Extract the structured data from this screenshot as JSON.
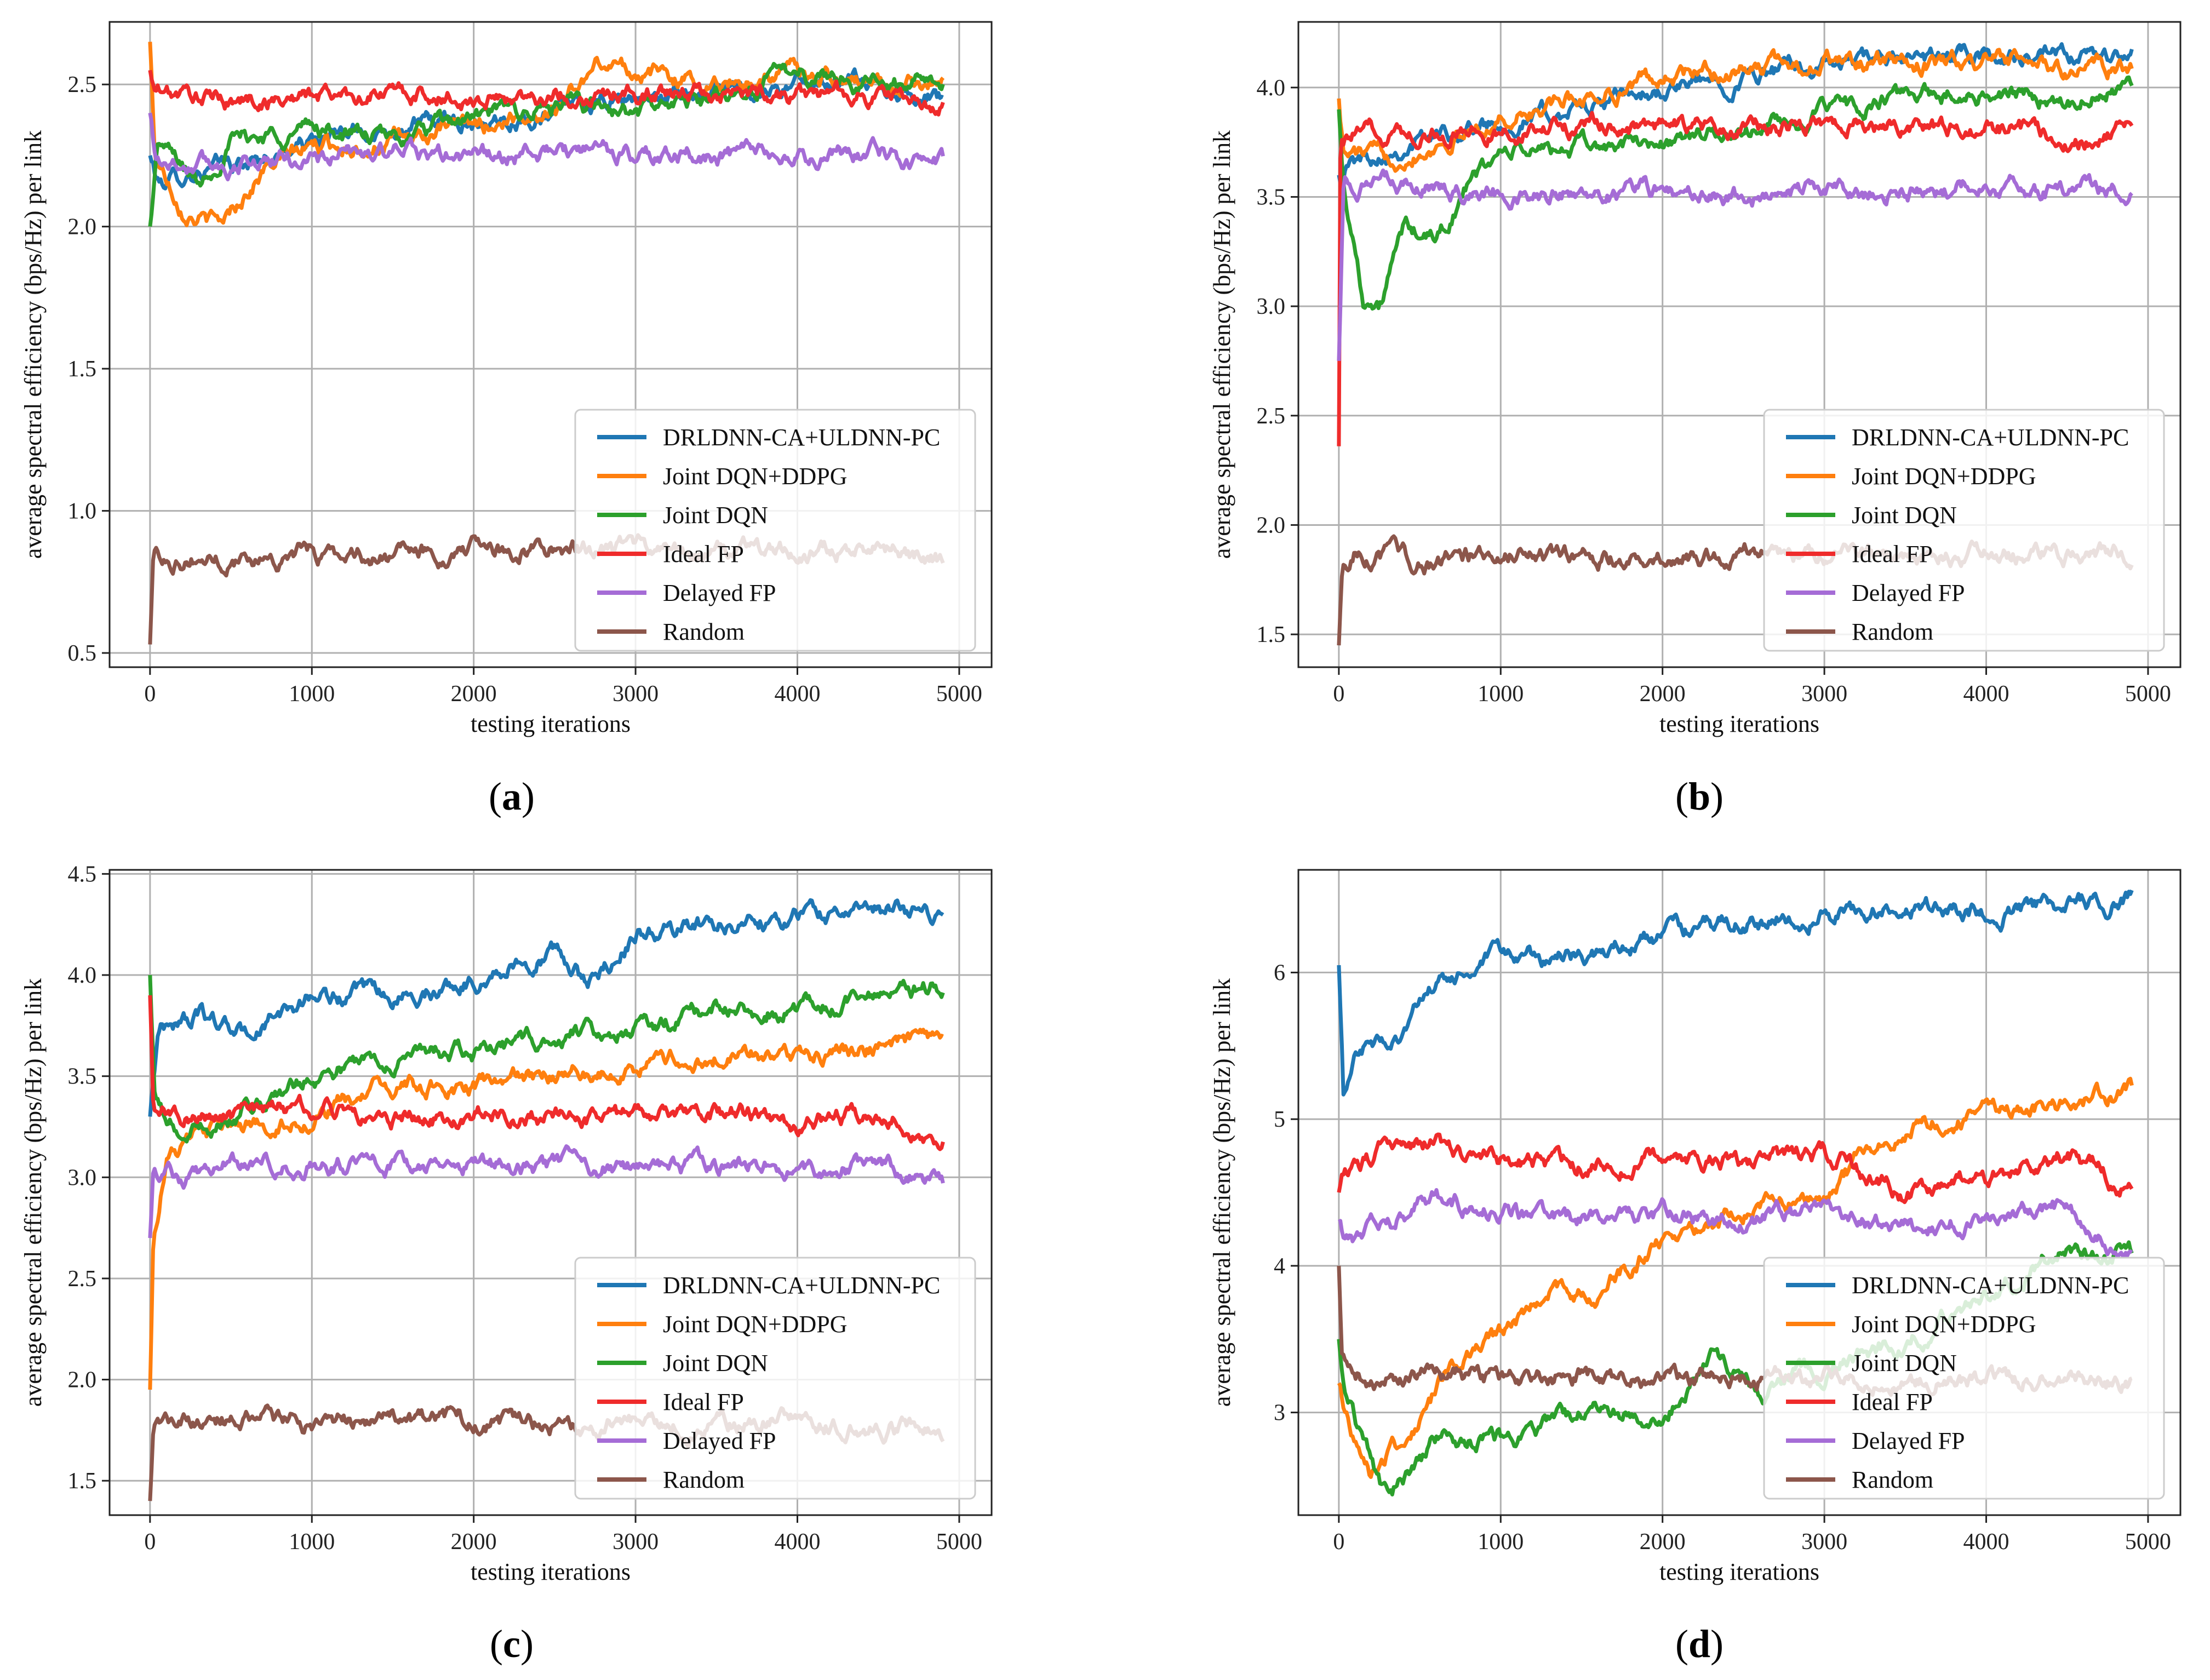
{
  "figure": {
    "x_label": "testing iterations",
    "y_label": "average spectral efficiency (bps/Hz) per link",
    "legend": [
      {
        "name": "DRLDNN-CA+ULDNN-PC",
        "color": "#1f77b4"
      },
      {
        "name": "Joint DQN+DDPG",
        "color": "#ff7f0e"
      },
      {
        "name": "Joint DQN",
        "color": "#2ca02c"
      },
      {
        "name": "Ideal FP",
        "color": "#ef2b2b"
      },
      {
        "name": "Delayed FP",
        "color": "#a56cd6"
      },
      {
        "name": "Random",
        "color": "#8c564b"
      }
    ]
  },
  "chart_data": [
    {
      "id": "a",
      "label": "(a)",
      "type": "line",
      "xlabel": "testing iterations",
      "ylabel": "average spectral efficiency (bps/Hz) per link",
      "xlim": [
        -250,
        5200
      ],
      "ylim": [
        0.45,
        2.72
      ],
      "xticks": [
        0,
        1000,
        2000,
        3000,
        4000,
        5000
      ],
      "yticks": [
        0.5,
        1.0,
        1.5,
        2.0,
        2.5
      ],
      "ytick_labels": [
        "0.5",
        "1.0",
        "1.5",
        "2.0",
        "2.5"
      ],
      "grid": true,
      "legend_position": "lower-right",
      "series": [
        {
          "name": "DRLDNN-CA+ULDNN-PC",
          "color": "#1f77b4",
          "x": [
            0,
            50,
            300,
            600,
            1000,
            1500,
            2000,
            2500,
            3000,
            3500,
            4000,
            4500,
            4900
          ],
          "y": [
            2.25,
            2.15,
            2.2,
            2.22,
            2.3,
            2.35,
            2.38,
            2.4,
            2.45,
            2.47,
            2.5,
            2.5,
            2.45
          ]
        },
        {
          "name": "Joint DQN+DDPG",
          "color": "#ff7f0e",
          "x": [
            0,
            30,
            200,
            420,
            700,
            1000,
            1500,
            2000,
            2500,
            2800,
            3000,
            3500,
            4000,
            4500,
            4900
          ],
          "y": [
            2.65,
            2.25,
            2.08,
            2.0,
            2.2,
            2.28,
            2.3,
            2.35,
            2.42,
            2.58,
            2.55,
            2.5,
            2.55,
            2.5,
            2.52
          ]
        },
        {
          "name": "Joint DQN",
          "color": "#2ca02c",
          "x": [
            0,
            50,
            300,
            500,
            1000,
            1500,
            2000,
            2500,
            3000,
            3500,
            4000,
            4500,
            4900
          ],
          "y": [
            2.0,
            2.3,
            2.15,
            2.3,
            2.35,
            2.3,
            2.38,
            2.42,
            2.4,
            2.45,
            2.55,
            2.5,
            2.52
          ]
        },
        {
          "name": "Ideal FP",
          "color": "#ef2b2b",
          "x": [
            0,
            20,
            100,
            500,
            1000,
            1500,
            2000,
            2500,
            3000,
            3500,
            4000,
            4500,
            4900
          ],
          "y": [
            2.55,
            2.48,
            2.47,
            2.44,
            2.46,
            2.47,
            2.45,
            2.46,
            2.47,
            2.46,
            2.47,
            2.46,
            2.42
          ]
        },
        {
          "name": "Delayed FP",
          "color": "#a56cd6",
          "x": [
            0,
            30,
            200,
            500,
            1000,
            1500,
            2000,
            2500,
            3000,
            3500,
            4000,
            4500,
            4900
          ],
          "y": [
            2.4,
            2.25,
            2.22,
            2.22,
            2.24,
            2.26,
            2.24,
            2.26,
            2.25,
            2.25,
            2.24,
            2.25,
            2.22
          ]
        },
        {
          "name": "Random",
          "color": "#8c564b",
          "x": [
            0,
            20,
            100,
            500,
            1000,
            1500,
            2000,
            2500,
            3000,
            3500,
            4000,
            4500,
            4900
          ],
          "y": [
            0.53,
            0.85,
            0.84,
            0.83,
            0.85,
            0.84,
            0.86,
            0.87,
            0.86,
            0.85,
            0.86,
            0.86,
            0.82
          ]
        }
      ]
    },
    {
      "id": "b",
      "label": "(b)",
      "type": "line",
      "xlabel": "testing iterations",
      "ylabel": "average spectral efficiency (bps/Hz) per link",
      "xlim": [
        -250,
        5200
      ],
      "ylim": [
        1.35,
        4.3
      ],
      "xticks": [
        0,
        1000,
        2000,
        3000,
        4000,
        5000
      ],
      "yticks": [
        1.5,
        2.0,
        2.5,
        3.0,
        3.5,
        4.0
      ],
      "ytick_labels": [
        "1.5",
        "2.0",
        "2.5",
        "3.0",
        "3.5",
        "4.0"
      ],
      "grid": true,
      "legend_position": "lower-right",
      "series": [
        {
          "name": "DRLDNN-CA+ULDNN-PC",
          "color": "#1f77b4",
          "x": [
            0,
            50,
            300,
            600,
            1000,
            1500,
            2000,
            2500,
            3000,
            3500,
            4000,
            4500,
            4900
          ],
          "y": [
            3.6,
            3.65,
            3.72,
            3.78,
            3.85,
            3.9,
            3.98,
            4.05,
            4.1,
            4.12,
            4.15,
            4.12,
            4.15
          ]
        },
        {
          "name": "Joint DQN+DDPG",
          "color": "#ff7f0e",
          "x": [
            0,
            30,
            300,
            600,
            1000,
            1500,
            2000,
            2500,
            3000,
            3500,
            4000,
            4500,
            4900
          ],
          "y": [
            3.95,
            3.7,
            3.68,
            3.75,
            3.85,
            3.95,
            4.05,
            4.08,
            4.12,
            4.1,
            4.12,
            4.08,
            4.1
          ]
        },
        {
          "name": "Joint DQN",
          "color": "#2ca02c",
          "x": [
            0,
            30,
            150,
            250,
            400,
            600,
            800,
            1000,
            1500,
            2000,
            2500,
            3000,
            3500,
            4000,
            4500,
            4900
          ],
          "y": [
            3.9,
            3.55,
            3.05,
            2.98,
            3.35,
            3.3,
            3.55,
            3.7,
            3.72,
            3.75,
            3.8,
            3.88,
            3.95,
            3.98,
            3.95,
            4.0
          ]
        },
        {
          "name": "Ideal FP",
          "color": "#ef2b2b",
          "x": [
            0,
            10,
            30,
            300,
            1000,
            1500,
            2000,
            2500,
            3000,
            3500,
            4000,
            4500,
            4900
          ],
          "y": [
            2.36,
            3.8,
            3.78,
            3.8,
            3.8,
            3.82,
            3.82,
            3.8,
            3.85,
            3.83,
            3.82,
            3.78,
            3.8
          ]
        },
        {
          "name": "Delayed FP",
          "color": "#a56cd6",
          "x": [
            0,
            30,
            300,
            1000,
            1500,
            2000,
            2500,
            3000,
            3500,
            4000,
            4500,
            4900
          ],
          "y": [
            2.75,
            3.58,
            3.55,
            3.52,
            3.52,
            3.52,
            3.5,
            3.53,
            3.52,
            3.55,
            3.53,
            3.54
          ]
        },
        {
          "name": "Random",
          "color": "#8c564b",
          "x": [
            0,
            20,
            100,
            500,
            1000,
            1500,
            2000,
            2500,
            3000,
            3500,
            4000,
            4500,
            4900
          ],
          "y": [
            1.45,
            1.8,
            1.88,
            1.82,
            1.88,
            1.85,
            1.86,
            1.88,
            1.87,
            1.86,
            1.86,
            1.87,
            1.85
          ]
        }
      ]
    },
    {
      "id": "c",
      "label": "(c)",
      "type": "line",
      "xlabel": "testing iterations",
      "ylabel": "average spectral efficiency (bps/Hz) per link",
      "xlim": [
        -250,
        5200
      ],
      "ylim": [
        1.33,
        4.52
      ],
      "xticks": [
        0,
        1000,
        2000,
        3000,
        4000,
        5000
      ],
      "yticks": [
        1.5,
        2.0,
        2.5,
        3.0,
        3.5,
        4.0,
        4.5
      ],
      "ytick_labels": [
        "1.5",
        "2.0",
        "2.5",
        "3.0",
        "3.5",
        "4.0",
        "4.5"
      ],
      "grid": true,
      "legend_position": "lower-right",
      "series": [
        {
          "name": "DRLDNN-CA+ULDNN-PC",
          "color": "#1f77b4",
          "x": [
            0,
            50,
            300,
            600,
            1000,
            1500,
            2000,
            2500,
            2700,
            3000,
            3500,
            4000,
            4500,
            4900
          ],
          "y": [
            3.3,
            3.75,
            3.8,
            3.7,
            3.9,
            3.88,
            3.98,
            4.12,
            3.95,
            4.2,
            4.25,
            4.3,
            4.32,
            4.3
          ]
        },
        {
          "name": "Joint DQN+DDPG",
          "color": "#ff7f0e",
          "x": [
            0,
            20,
            100,
            300,
            600,
            1000,
            1500,
            2000,
            2500,
            3000,
            3500,
            4000,
            4500,
            4900
          ],
          "y": [
            1.95,
            2.7,
            3.1,
            3.2,
            3.25,
            3.3,
            3.45,
            3.45,
            3.5,
            3.55,
            3.6,
            3.6,
            3.65,
            3.65
          ]
        },
        {
          "name": "Joint DQN",
          "color": "#2ca02c",
          "x": [
            0,
            30,
            200,
            500,
            1000,
            1500,
            2000,
            2500,
            3000,
            3500,
            4000,
            4500,
            4900
          ],
          "y": [
            4.0,
            3.35,
            3.2,
            3.3,
            3.5,
            3.6,
            3.62,
            3.7,
            3.75,
            3.82,
            3.85,
            3.9,
            3.95
          ]
        },
        {
          "name": "Ideal FP",
          "color": "#ef2b2b",
          "x": [
            0,
            20,
            200,
            500,
            1000,
            1500,
            2000,
            2500,
            3000,
            3500,
            4000,
            4500,
            4900
          ],
          "y": [
            3.9,
            3.35,
            3.3,
            3.3,
            3.35,
            3.3,
            3.32,
            3.3,
            3.3,
            3.32,
            3.28,
            3.3,
            3.22
          ]
        },
        {
          "name": "Delayed FP",
          "color": "#a56cd6",
          "x": [
            0,
            20,
            200,
            500,
            1000,
            1500,
            2000,
            2500,
            3000,
            3500,
            4000,
            4500,
            4900
          ],
          "y": [
            2.7,
            3.05,
            3.0,
            3.05,
            3.08,
            3.05,
            3.05,
            3.05,
            3.05,
            3.05,
            3.05,
            3.05,
            2.98
          ]
        },
        {
          "name": "Random",
          "color": "#8c564b",
          "x": [
            0,
            20,
            100,
            500,
            1000,
            1500,
            2000,
            2500,
            3000,
            3500,
            4000,
            4500,
            4900
          ],
          "y": [
            1.4,
            1.72,
            1.8,
            1.8,
            1.78,
            1.8,
            1.8,
            1.78,
            1.8,
            1.78,
            1.8,
            1.78,
            1.76
          ]
        }
      ]
    },
    {
      "id": "d",
      "label": "(d)",
      "type": "line",
      "xlabel": "testing iterations",
      "ylabel": "average spectral efficiency (bps/Hz) per link",
      "xlim": [
        -250,
        5200
      ],
      "ylim": [
        2.3,
        6.7
      ],
      "xticks": [
        0,
        1000,
        2000,
        3000,
        4000,
        5000
      ],
      "yticks": [
        3,
        4,
        5,
        6
      ],
      "ytick_labels": [
        "3",
        "4",
        "5",
        "6"
      ],
      "grid": true,
      "legend_position": "lower-right",
      "series": [
        {
          "name": "DRLDNN-CA+ULDNN-PC",
          "color": "#1f77b4",
          "x": [
            0,
            30,
            100,
            300,
            600,
            1000,
            1500,
            2000,
            2500,
            3000,
            3500,
            4000,
            4500,
            4900
          ],
          "y": [
            6.05,
            5.1,
            5.5,
            5.5,
            5.9,
            6.1,
            6.1,
            6.25,
            6.35,
            6.4,
            6.45,
            6.42,
            6.45,
            6.5
          ]
        },
        {
          "name": "Joint DQN+DDPG",
          "color": "#ff7f0e",
          "x": [
            0,
            30,
            200,
            400,
            700,
            1000,
            1300,
            1600,
            2000,
            2500,
            3000,
            3500,
            4000,
            4500,
            4900
          ],
          "y": [
            3.2,
            3.0,
            2.6,
            2.8,
            3.3,
            3.5,
            3.85,
            3.8,
            4.2,
            4.4,
            4.5,
            4.95,
            5.05,
            5.1,
            5.2
          ]
        },
        {
          "name": "Joint DQN",
          "color": "#2ca02c",
          "x": [
            0,
            30,
            300,
            600,
            1000,
            1500,
            2000,
            2300,
            2600,
            2800,
            3000,
            3500,
            4000,
            4500,
            4900
          ],
          "y": [
            3.5,
            3.15,
            2.4,
            2.8,
            2.8,
            3.0,
            3.0,
            3.4,
            3.1,
            3.3,
            3.3,
            3.5,
            3.8,
            4.1,
            4.1
          ]
        },
        {
          "name": "Ideal FP",
          "color": "#ef2b2b",
          "x": [
            0,
            30,
            300,
            600,
            1000,
            1500,
            2000,
            2500,
            3000,
            3500,
            4000,
            4500,
            4900
          ],
          "y": [
            4.5,
            4.6,
            4.8,
            4.85,
            4.7,
            4.7,
            4.75,
            4.7,
            4.75,
            4.5,
            4.6,
            4.75,
            4.55
          ]
        },
        {
          "name": "Delayed FP",
          "color": "#a56cd6",
          "x": [
            0,
            30,
            300,
            600,
            1000,
            1500,
            2000,
            2500,
            3000,
            3500,
            4000,
            4500,
            4900
          ],
          "y": [
            4.3,
            4.15,
            4.3,
            4.45,
            4.35,
            4.3,
            4.35,
            4.3,
            4.4,
            4.25,
            4.35,
            4.4,
            4.1
          ]
        },
        {
          "name": "Random",
          "color": "#8c564b",
          "x": [
            0,
            20,
            200,
            600,
            1000,
            1500,
            2000,
            2500,
            3000,
            3500,
            4000,
            4500,
            4900
          ],
          "y": [
            4.0,
            3.35,
            3.25,
            3.25,
            3.22,
            3.25,
            3.2,
            3.25,
            3.25,
            3.22,
            3.22,
            3.25,
            3.2
          ]
        }
      ]
    }
  ]
}
